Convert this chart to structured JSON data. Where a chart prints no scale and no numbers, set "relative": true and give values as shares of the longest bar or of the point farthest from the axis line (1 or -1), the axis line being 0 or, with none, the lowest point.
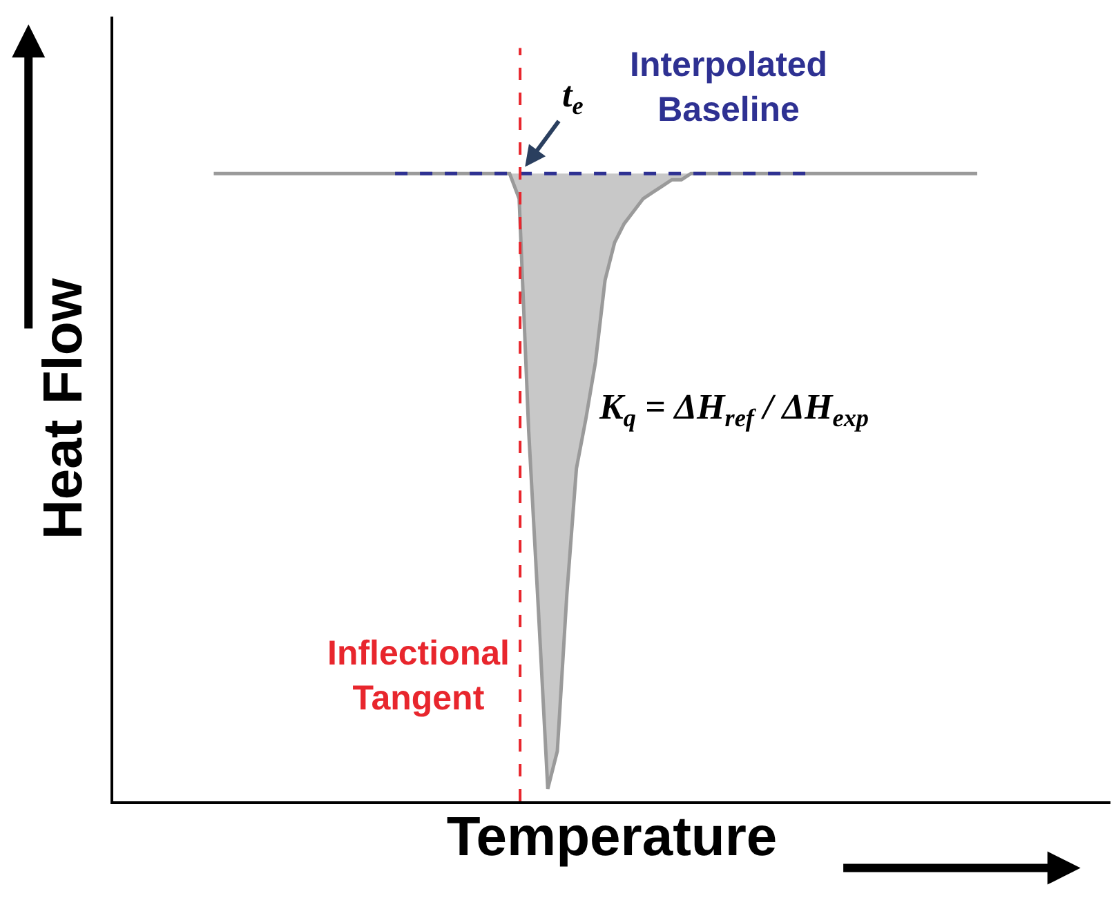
{
  "chart_data": {
    "type": "line",
    "relative": true,
    "xlabel": "Temperature",
    "ylabel": "Heat Flow",
    "legend": false,
    "tick_labels": false,
    "categories": [
      null,
      null,
      null,
      null,
      null,
      null,
      null,
      null,
      null,
      null,
      null,
      null,
      null,
      null,
      null,
      null,
      null,
      null,
      null,
      null,
      null,
      null,
      null,
      null,
      null,
      null,
      null,
      null,
      null,
      null,
      null,
      null,
      null,
      null,
      null,
      null,
      null,
      null,
      null,
      null,
      null,
      null,
      null,
      null,
      null,
      null,
      null,
      null,
      null,
      null,
      null,
      null,
      null,
      null,
      null,
      null,
      null,
      null,
      null,
      null,
      null,
      null,
      null,
      null,
      null,
      null,
      null,
      null,
      null,
      null,
      null,
      null,
      null,
      null,
      null,
      null,
      null,
      null,
      null,
      null,
      null
    ],
    "series": [
      {
        "color": "#9a9a9a",
        "line_style": "solid",
        "values": [
          1,
          1,
          1,
          1,
          1,
          1,
          1,
          1,
          1,
          1,
          1,
          1,
          1,
          1,
          1,
          1,
          1,
          1,
          1,
          1,
          1,
          1,
          1,
          1,
          1,
          1,
          1,
          1,
          1,
          1,
          1,
          1,
          0.96,
          0.59,
          0.31,
          0.02,
          0.08,
          0.33,
          0.53,
          0.61,
          0.7,
          0.83,
          0.89,
          0.92,
          0.94,
          0.96,
          0.97,
          0.98,
          0.99,
          0.99,
          1,
          1,
          1,
          1,
          1,
          1,
          1,
          1,
          1,
          1,
          1,
          1,
          1,
          1,
          1,
          1,
          1,
          1,
          1,
          1,
          1,
          1,
          1,
          1,
          1,
          1,
          1,
          1,
          1,
          1,
          1
        ]
      },
      {
        "name": "Interpolated Baseline",
        "color": "#2e3192",
        "line_style": "dashed",
        "values": [
          null,
          null,
          null,
          null,
          null,
          null,
          null,
          null,
          null,
          null,
          null,
          null,
          null,
          null,
          null,
          null,
          null,
          null,
          null,
          1,
          1,
          1,
          1,
          1,
          1,
          1,
          1,
          1,
          1,
          1,
          1,
          1,
          1,
          1,
          1,
          1,
          1,
          1,
          1,
          1,
          1,
          1,
          1,
          1,
          1,
          1,
          1,
          1,
          1,
          1,
          1,
          1,
          1,
          1,
          1,
          1,
          1,
          1,
          1,
          1,
          1,
          1,
          1,
          null,
          null,
          null,
          null,
          null,
          null,
          null,
          null,
          null,
          null,
          null,
          null,
          null,
          null,
          null,
          null,
          null,
          null
        ]
      }
    ],
    "annotations": [
      {
        "text": "t$_{e}$",
        "y": 1
      },
      "Inflectional Tangent",
      "K$_{q}$ = ΔH$_{ref}$ / ΔH$_{exp}$"
    ]
  }
}
